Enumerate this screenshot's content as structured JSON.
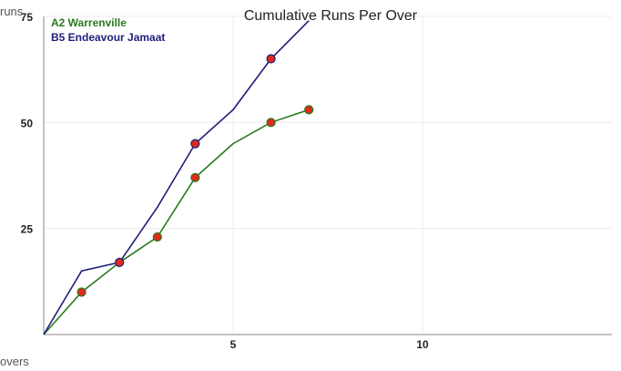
{
  "chart_data": {
    "type": "line",
    "title": "Cumulative Runs Per Over",
    "xlabel": "overs",
    "ylabel": "runs",
    "xlim": [
      0,
      15
    ],
    "ylim": [
      0,
      75
    ],
    "x_ticks": [
      5,
      10
    ],
    "y_ticks": [
      25,
      50,
      75
    ],
    "grid": true,
    "legend": "top-left",
    "series": [
      {
        "name": "A2 Warrenville",
        "color": "#2a7a1e",
        "points": [
          [
            0,
            0
          ],
          [
            1,
            10
          ],
          [
            2,
            17
          ],
          [
            3,
            23
          ],
          [
            4,
            37
          ],
          [
            5,
            45
          ],
          [
            6,
            50
          ],
          [
            7,
            53
          ]
        ],
        "markers": [
          1,
          3,
          4,
          6,
          7
        ]
      },
      {
        "name": "B5 Endeavour Jamaat",
        "color": "#1f1f7a",
        "points": [
          [
            0,
            0
          ],
          [
            1,
            15
          ],
          [
            2,
            17
          ],
          [
            3,
            30
          ],
          [
            4,
            45
          ],
          [
            5,
            53
          ],
          [
            6,
            65
          ],
          [
            7,
            74
          ]
        ],
        "markers": [
          2,
          4,
          6
        ]
      }
    ],
    "marker_color": "#e02a1d"
  }
}
